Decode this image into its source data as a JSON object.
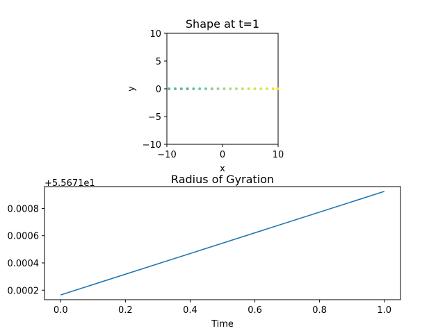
{
  "chart_data": [
    {
      "type": "scatter",
      "title": "Shape at t=1",
      "xlabel": "x",
      "ylabel": "y",
      "xlim": [
        -10,
        10
      ],
      "ylim": [
        -10,
        10
      ],
      "xticks": [
        "−10",
        "0",
        "10"
      ],
      "yticks": [
        "−10",
        "−5",
        "0",
        "5",
        "10"
      ],
      "grid": false,
      "points": [
        {
          "x": -9.6,
          "y": 0,
          "color": "#53b3a8"
        },
        {
          "x": -8.5,
          "y": 0,
          "color": "#5db7a6"
        },
        {
          "x": -7.4,
          "y": 0,
          "color": "#5ab7a6"
        },
        {
          "x": -6.3,
          "y": 0,
          "color": "#52b1a8"
        },
        {
          "x": -5.2,
          "y": 0,
          "color": "#66bfa0"
        },
        {
          "x": -4.1,
          "y": 0,
          "color": "#70c39c"
        },
        {
          "x": -3.0,
          "y": 0,
          "color": "#78c798"
        },
        {
          "x": -1.9,
          "y": 0,
          "color": "#86cd92"
        },
        {
          "x": -0.8,
          "y": 0,
          "color": "#94d18c"
        },
        {
          "x": 0.3,
          "y": 0,
          "color": "#a2d585"
        },
        {
          "x": 1.4,
          "y": 0,
          "color": "#acd97f"
        },
        {
          "x": 2.5,
          "y": 0,
          "color": "#b6dc78"
        },
        {
          "x": 3.6,
          "y": 0,
          "color": "#c0df6f"
        },
        {
          "x": 4.7,
          "y": 0,
          "color": "#c8e166"
        },
        {
          "x": 5.8,
          "y": 0,
          "color": "#d2e45c"
        },
        {
          "x": 6.9,
          "y": 0,
          "color": "#dbe552"
        },
        {
          "x": 8.0,
          "y": 0,
          "color": "#e1e346"
        },
        {
          "x": 9.1,
          "y": 0,
          "color": "#e6e43d"
        },
        {
          "x": 9.9,
          "y": 0,
          "color": "#ecea36"
        }
      ]
    },
    {
      "type": "line",
      "title": "Radius of Gyration",
      "xlabel": "Time",
      "ylabel": "",
      "offset_label": "+5.5671e1",
      "xlim": [
        -0.05,
        1.05
      ],
      "ylim": [
        0.00013,
        0.00096
      ],
      "xticks": [
        "0.0",
        "0.2",
        "0.4",
        "0.6",
        "0.8",
        "1.0"
      ],
      "yticks": [
        "0.0002",
        "0.0004",
        "0.0006",
        "0.0008"
      ],
      "grid": false,
      "color": "#1f77b4",
      "series": [
        {
          "x": [
            0.0,
            1.0
          ],
          "y": [
            0.000165,
            0.000925
          ]
        }
      ]
    }
  ]
}
